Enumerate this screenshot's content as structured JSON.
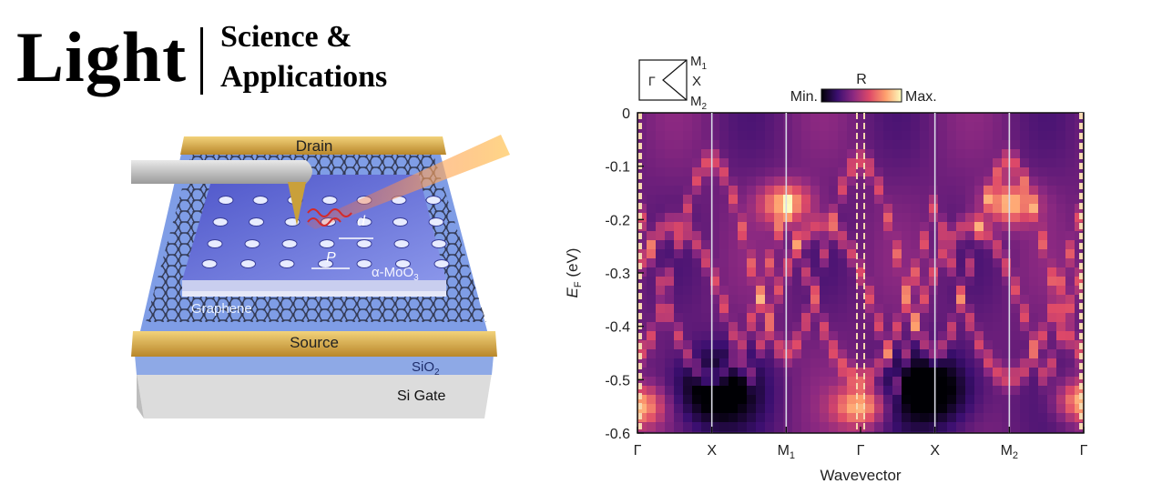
{
  "logo": {
    "word": "Light",
    "line1": "Science &",
    "line2": "Applications"
  },
  "schematic": {
    "labels": {
      "drain": "Drain",
      "source": "Source",
      "graphene": "Graphene",
      "moo3": "α-MoO",
      "moo3_sub": "3",
      "sio2": "SiO",
      "sio2_sub": "2",
      "si_gate": "Si Gate",
      "d": "d",
      "p": "P"
    },
    "colors": {
      "gold": "#d9ad3a",
      "flake": "#5a67d6",
      "substrate_blue": "#6f8fd8",
      "gate_gray": "#d9d9d9"
    }
  },
  "chart_data": {
    "type": "heatmap",
    "xlabel": "Wavevector",
    "ylabel": "E",
    "ylabel_sub": "F",
    "ylabel_unit": " (eV)",
    "xticks": [
      "Γ",
      "X",
      "M",
      "Γ",
      "X",
      "M",
      "Γ"
    ],
    "xtick_subs": [
      "",
      "",
      "1",
      "",
      "",
      "2",
      ""
    ],
    "yticks": [
      0,
      -0.1,
      -0.2,
      -0.3,
      -0.4,
      -0.5,
      -0.6
    ],
    "ylim": [
      -0.6,
      0
    ],
    "colorbar": {
      "title": "R",
      "min_label": "Min.",
      "max_label": "Max."
    },
    "colormap": [
      "#000004",
      "#3b0f70",
      "#8c2981",
      "#de4968",
      "#fe9f6d",
      "#fcfdbf"
    ],
    "inset": {
      "gamma": "Γ",
      "x": "X",
      "m1": "M",
      "m1_sub": "1",
      "m2": "M",
      "m2_sub": "2"
    },
    "bright_spots": [
      {
        "x_tick": 2,
        "energy": -0.17
      },
      {
        "x_tick": 5,
        "energy": -0.17
      },
      {
        "x_tick": 0,
        "energy": -0.55
      },
      {
        "x_tick": 3,
        "energy": -0.55
      },
      {
        "x_tick": 6,
        "energy": -0.54
      }
    ],
    "dark_regions": [
      {
        "x_tick": 1,
        "energy": -0.52
      },
      {
        "x_tick": 4,
        "energy": -0.52
      }
    ]
  }
}
